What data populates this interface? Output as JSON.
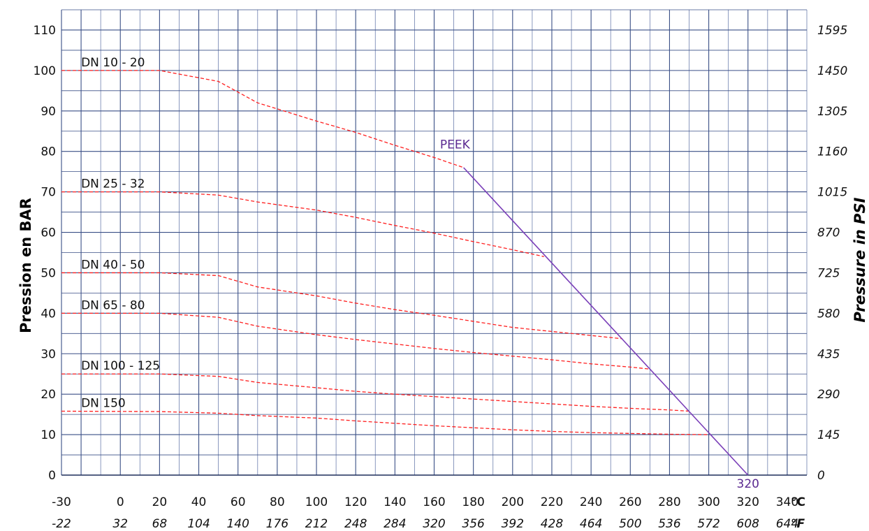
{
  "chart_data": {
    "type": "line",
    "ylabel_left": "Pression en BAR",
    "ylabel_right": "Pressure in PSI",
    "x_unit_c": "°C",
    "x_unit_f": "°F",
    "xlim": [
      -30,
      350
    ],
    "ylim": [
      0,
      115
    ],
    "x_ticks_c": [
      "-30",
      "0",
      "20",
      "40",
      "60",
      "80",
      "100",
      "120",
      "140",
      "160",
      "180",
      "200",
      "220",
      "240",
      "260",
      "280",
      "300",
      "320",
      "340"
    ],
    "x_ticks_f": [
      "-22",
      "32",
      "68",
      "104",
      "140",
      "176",
      "212",
      "248",
      "284",
      "320",
      "356",
      "392",
      "428",
      "464",
      "500",
      "536",
      "572",
      "608",
      "644"
    ],
    "y_ticks_bar": [
      "0",
      "10",
      "20",
      "30",
      "40",
      "50",
      "60",
      "70",
      "80",
      "90",
      "100",
      "110"
    ],
    "y_ticks_psi": [
      "0",
      "145",
      "290",
      "435",
      "580",
      "725",
      "870",
      "1015",
      "1160",
      "1305",
      "1450",
      "1595"
    ],
    "grid": true,
    "series": [
      {
        "name": "DN 10 - 20",
        "style": "dashed",
        "color": "#ff2020",
        "x": [
          -30,
          20,
          50,
          70,
          100,
          120,
          140,
          160,
          175
        ],
        "y": [
          100,
          100,
          97.3,
          92,
          87.5,
          84.7,
          81.5,
          78.5,
          76
        ]
      },
      {
        "name": "DN 25 - 32",
        "style": "dashed",
        "color": "#ff2020",
        "x": [
          -30,
          20,
          50,
          70,
          100,
          120,
          140,
          160,
          180,
          200,
          216
        ],
        "y": [
          70,
          70,
          69.2,
          67.5,
          65.5,
          63.7,
          61.7,
          59.8,
          57.7,
          55.7,
          54
        ]
      },
      {
        "name": "DN 40 - 50",
        "style": "dashed",
        "color": "#ff2020",
        "x": [
          -30,
          20,
          50,
          70,
          100,
          120,
          140,
          160,
          180,
          200,
          220,
          240,
          256
        ],
        "y": [
          50,
          50,
          49.3,
          46.5,
          44.3,
          42.5,
          40.9,
          39.5,
          38,
          36.5,
          35.5,
          34.5,
          33.7
        ]
      },
      {
        "name": "DN 65 - 80",
        "style": "dashed",
        "color": "#ff2020",
        "x": [
          -30,
          20,
          50,
          70,
          100,
          120,
          140,
          160,
          180,
          200,
          220,
          240,
          260,
          270
        ],
        "y": [
          40,
          40,
          39,
          36.8,
          34.7,
          33.5,
          32.4,
          31.3,
          30.3,
          29.4,
          28.5,
          27.5,
          26.7,
          26.2
        ]
      },
      {
        "name": "DN 100 - 125",
        "style": "dashed",
        "color": "#ff2020",
        "x": [
          -30,
          20,
          50,
          70,
          100,
          120,
          140,
          160,
          180,
          200,
          220,
          240,
          260,
          280,
          290
        ],
        "y": [
          25,
          25,
          24.4,
          22.9,
          21.6,
          20.7,
          20,
          19.4,
          18.8,
          18.2,
          17.6,
          17,
          16.5,
          16.1,
          15.8
        ]
      },
      {
        "name": "DN 150",
        "style": "dashed",
        "color": "#ff2020",
        "x": [
          -30,
          20,
          50,
          70,
          100,
          120,
          140,
          160,
          180,
          200,
          220,
          240,
          260,
          280,
          300
        ],
        "y": [
          15.8,
          15.7,
          15.3,
          14.7,
          14.1,
          13.4,
          12.8,
          12.2,
          11.7,
          11.2,
          10.8,
          10.5,
          10.3,
          10.1,
          10
        ]
      },
      {
        "name": "PEEK",
        "style": "solid",
        "color": "#7a3fb8",
        "x": [
          175,
          320
        ],
        "y": [
          76,
          0
        ]
      }
    ],
    "annotations": [
      {
        "text": "PEEK",
        "color": "#5b2a91"
      },
      {
        "text": "320",
        "color": "#5b2a91"
      }
    ]
  }
}
